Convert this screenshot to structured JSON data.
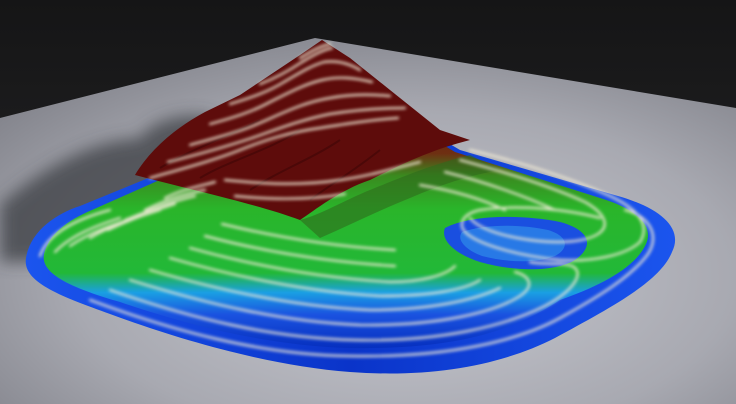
{
  "scene": {
    "subject": "terrain-model",
    "colors": {
      "background_top": "#1c1c1d",
      "ground": "#9fa0a8",
      "ground_light": "#c7c8cf",
      "shadow": "#3a3a3f",
      "water_blue": "#0a35c8",
      "edge_blue": "#2f7cf0",
      "lowland_green": "#1fa92b",
      "midland_green": "#2fc12f",
      "upland_brown": "#5e2b13",
      "peak_red": "#6b0b0b",
      "contour": "#f1ecdc"
    }
  }
}
